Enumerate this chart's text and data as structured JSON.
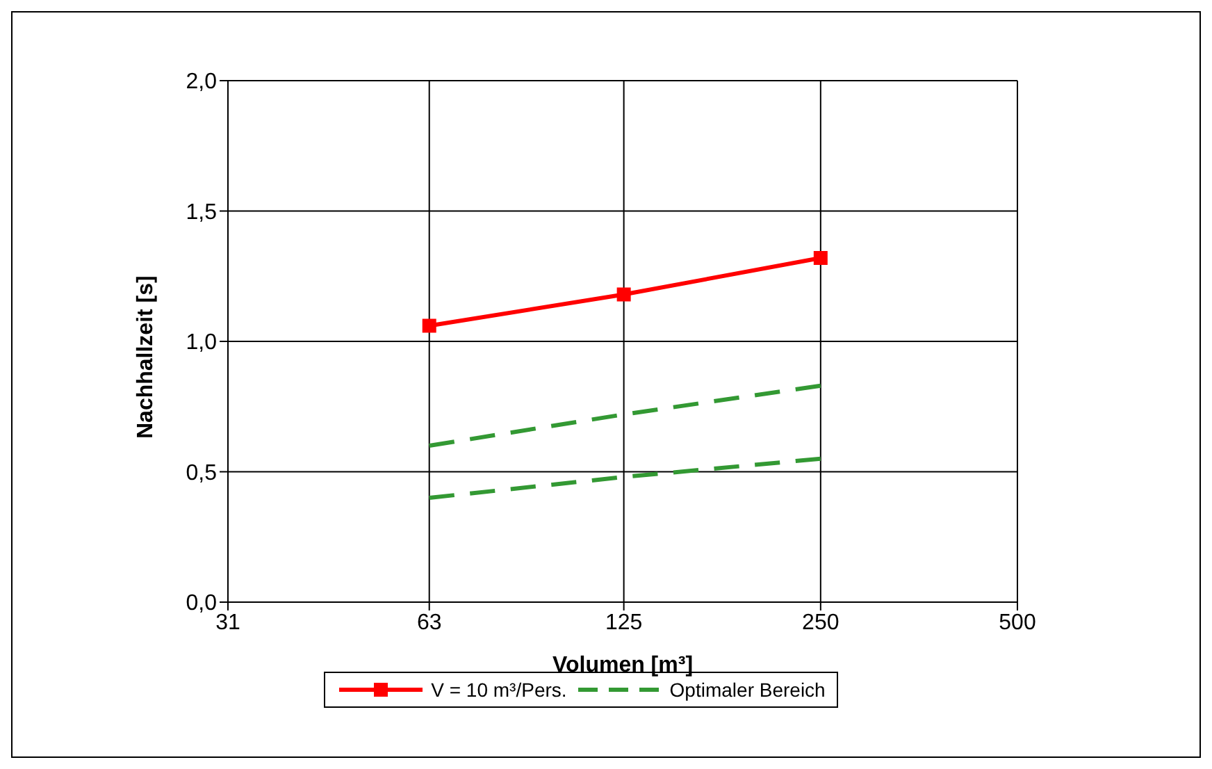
{
  "chart_data": {
    "type": "line",
    "xlabel": "Volumen [m³]",
    "ylabel": "Nachhallzeit [s]",
    "x": [
      63,
      125,
      250
    ],
    "series": [
      {
        "name": "V = 10 m³/Pers.",
        "color": "#ff0000",
        "values": [
          1.06,
          1.18,
          1.32
        ],
        "marker": "square",
        "line_style": "solid"
      },
      {
        "name": "Optimaler Bereich",
        "color": "#339933",
        "values": [
          0.6,
          0.72,
          0.83
        ],
        "marker": "none",
        "line_style": "dashed"
      },
      {
        "color": "#339933",
        "values": [
          0.4,
          0.48,
          0.55
        ],
        "marker": "none",
        "line_style": "dashed"
      }
    ],
    "log": "x",
    "xlim": [
      31,
      500
    ],
    "xticks": [
      31,
      63,
      125,
      250,
      500
    ],
    "ylim": [
      0,
      2
    ],
    "yticks": [
      {
        "value": 0,
        "label": "0,0"
      },
      {
        "value": 0.5,
        "label": "0,5"
      },
      {
        "value": 1,
        "label": "1,0"
      },
      {
        "value": 1.5,
        "label": "1,5"
      },
      {
        "value": 2,
        "label": "2,0"
      }
    ],
    "grid": true,
    "legend": "bottom"
  }
}
